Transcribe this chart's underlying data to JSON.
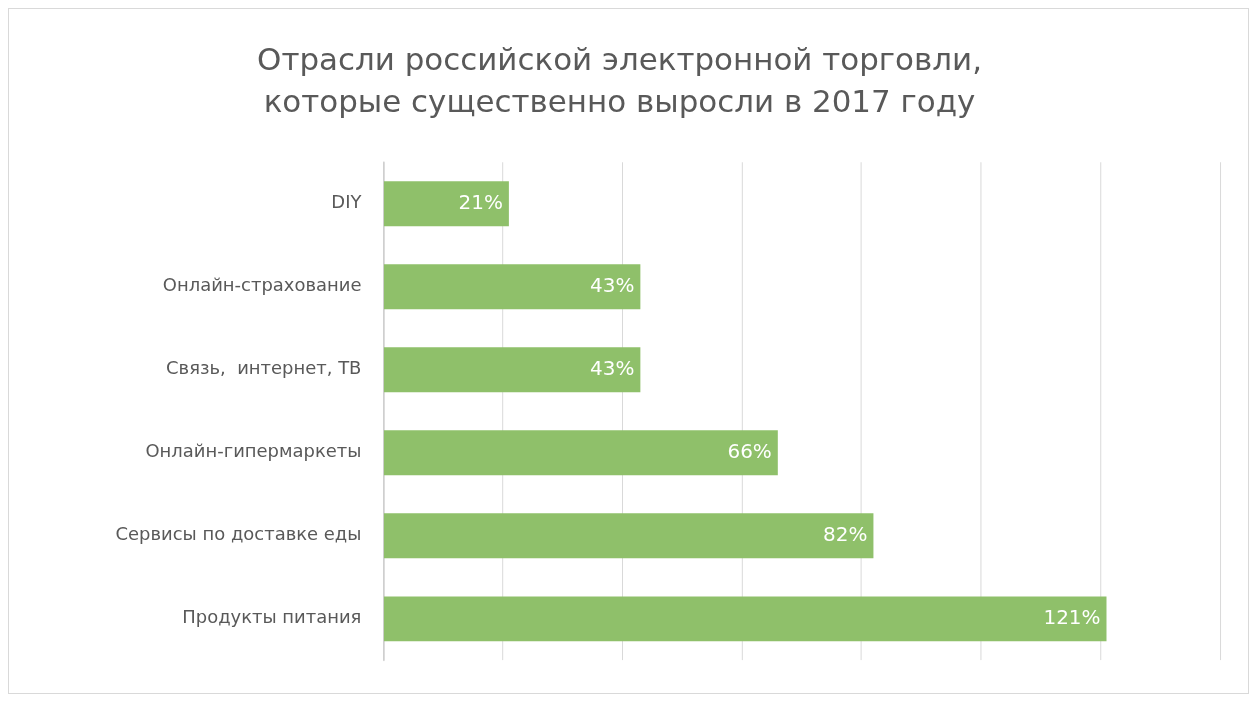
{
  "chart_data": {
    "type": "bar",
    "orientation": "horizontal",
    "title": "Отрасли российской электронной торговли,\nкоторые существенно выросли в 2017 году",
    "categories": [
      "DIY",
      "Онлайн-страхование",
      "Связь,  интернет, ТВ",
      "Онлайн-гипермаркеты",
      "Сервисы по доставке еды",
      "Продукты питания"
    ],
    "values": [
      21,
      43,
      43,
      66,
      82,
      121
    ],
    "value_labels": [
      "21%",
      "43%",
      "43%",
      "66%",
      "82%",
      "121%"
    ],
    "color": "#8fc06a",
    "xlim": [
      0,
      140
    ],
    "xticks": [
      {
        "value": 0,
        "label": null
      },
      {
        "value": 20,
        "label": null
      },
      {
        "value": 40,
        "label": null
      },
      {
        "value": 60,
        "label": null
      },
      {
        "value": 80,
        "label": null
      },
      {
        "value": 100,
        "label": null
      },
      {
        "value": 120,
        "label": null
      },
      {
        "value": 140,
        "label": null
      }
    ],
    "tick_labels": "y",
    "grid": "x",
    "legend": false
  }
}
